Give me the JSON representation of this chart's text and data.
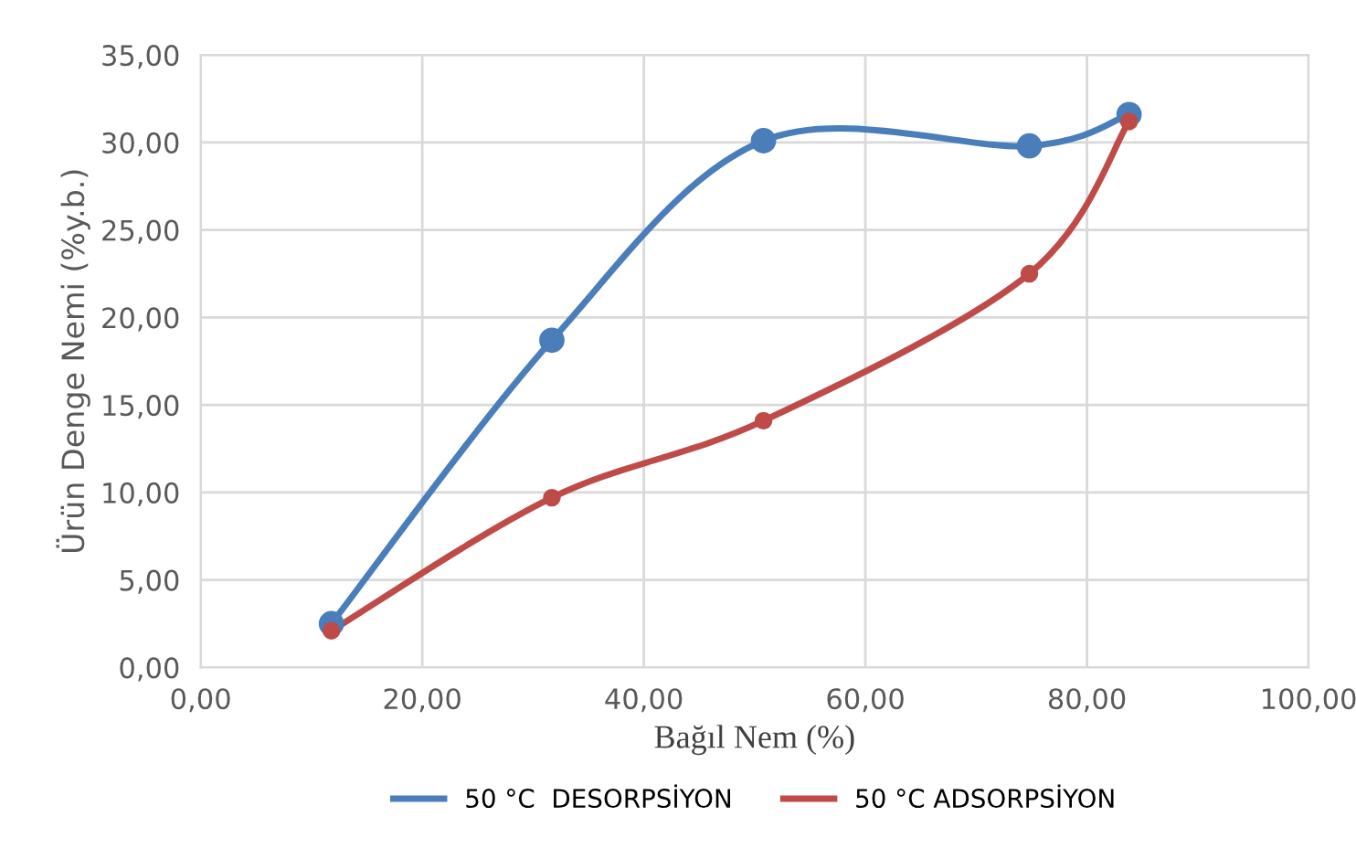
{
  "chart_data": {
    "type": "line",
    "xlabel": "Bağıl Nem (%)",
    "ylabel": "Ürün Denge Nemi (%y.b.)",
    "x": [
      11.8,
      31.7,
      50.8,
      74.8,
      83.8
    ],
    "series": [
      {
        "name": "50 °C  DESORPSİYON",
        "color": "#4a7ebb",
        "values": [
          2.5,
          18.7,
          30.1,
          29.8,
          31.6
        ]
      },
      {
        "name": "50 °C ADSORPSİYON",
        "color": "#be4b48",
        "values": [
          2.1,
          9.7,
          14.1,
          22.5,
          31.2
        ]
      }
    ],
    "xlim": [
      0,
      100
    ],
    "ylim": [
      0,
      35
    ],
    "xticks": [
      {
        "value": 0,
        "label": "0,00"
      },
      {
        "value": 20,
        "label": "20,00"
      },
      {
        "value": 40,
        "label": "40,00"
      },
      {
        "value": 60,
        "label": "60,00"
      },
      {
        "value": 80,
        "label": "80,00"
      },
      {
        "value": 100,
        "label": "100,00"
      }
    ],
    "yticks": [
      {
        "value": 0,
        "label": "0,00"
      },
      {
        "value": 5,
        "label": "5,00"
      },
      {
        "value": 10,
        "label": "10,00"
      },
      {
        "value": 15,
        "label": "15,00"
      },
      {
        "value": 20,
        "label": "20,00"
      },
      {
        "value": 25,
        "label": "25,00"
      },
      {
        "value": 30,
        "label": "30,00"
      },
      {
        "value": 35,
        "label": "35,00"
      }
    ],
    "grid": true,
    "legend": "bottom",
    "marker": "circle",
    "line_style": "solid"
  }
}
